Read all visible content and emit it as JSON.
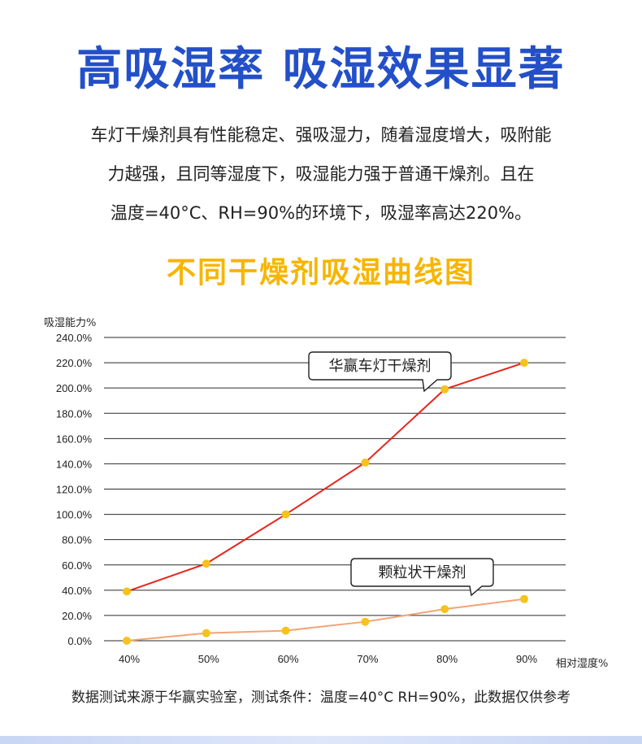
{
  "header": {
    "headline": "高吸湿率 吸湿效果显著",
    "intro_lines": [
      "车灯干燥剂具有性能稳定、强吸湿力，随着湿度增大，吸附能",
      "力越强，且同等湿度下，吸湿能力强于普通干燥剂。且在",
      "温度=40°C、RH=90%的环境下，吸湿率高达220%。"
    ]
  },
  "chart_data": {
    "type": "line",
    "title": "不同干燥剂吸湿曲线图",
    "ylabel": "吸湿能力%",
    "xlabel": "相对湿度%",
    "x": [
      "40%",
      "50%",
      "60%",
      "70%",
      "80%",
      "90%"
    ],
    "y_ticks": [
      "0.0%",
      "20.0%",
      "40.0%",
      "60.0%",
      "80.0%",
      "100.0%",
      "120.0%",
      "140.0%",
      "160.0%",
      "180.0%",
      "200.0%",
      "220.0%",
      "240.0%"
    ],
    "ylim": [
      0,
      240
    ],
    "grid": true,
    "series": [
      {
        "name": "华赢车灯干燥剂",
        "values": [
          39,
          61,
          100,
          141,
          199,
          220
        ],
        "color": "#e8241c"
      },
      {
        "name": "颗粒状干燥剂",
        "values": [
          0,
          6,
          8,
          15,
          25,
          33
        ],
        "color": "#f2a378"
      }
    ],
    "marker_color": "#f7c21c"
  },
  "footer": {
    "note": "数据测试来源于华赢实验室，测试条件：温度=40°C RH=90%，此数据仅供参考"
  }
}
